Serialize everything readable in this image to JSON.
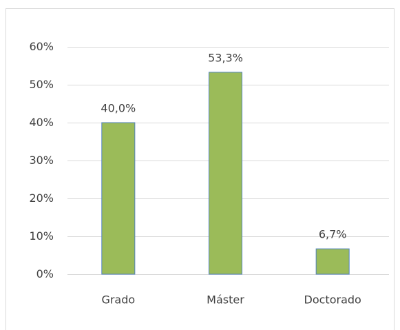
{
  "chart_data": {
    "type": "bar",
    "categories": [
      "Grado",
      "Máster",
      "Doctorado"
    ],
    "values": [
      40.0,
      53.3,
      6.7
    ],
    "value_labels": [
      "40,0%",
      "53,3%",
      "6,7%"
    ],
    "color": "#9bbb59",
    "edge_color": "#4f81bd",
    "ylim": [
      0,
      60
    ],
    "yticks": [
      {
        "value": 0,
        "label": "0%"
      },
      {
        "value": 10,
        "label": "10%"
      },
      {
        "value": 20,
        "label": "20%"
      },
      {
        "value": 30,
        "label": "30%"
      },
      {
        "value": 40,
        "label": "40%"
      },
      {
        "value": 50,
        "label": "50%"
      },
      {
        "value": 60,
        "label": "60%"
      }
    ],
    "grid": true
  }
}
